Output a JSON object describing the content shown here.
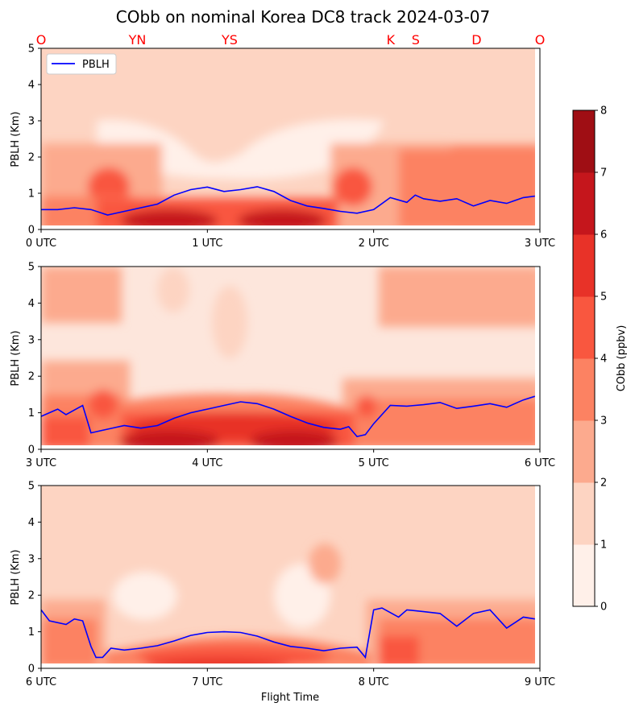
{
  "title": "CObb on nominal Korea DC8 track 2024-03-07",
  "colors": {
    "pblh_line": "#0000ff",
    "site_label": "#ff0000",
    "levels": [
      "#fff0e9",
      "#fdd4c2",
      "#fcaa8e",
      "#fc8262",
      "#f9573f",
      "#e83228",
      "#c5161c",
      "#9f0e14"
    ]
  },
  "site_labels": [
    "O",
    "YN",
    "YS",
    "K",
    "S",
    "D",
    "O"
  ],
  "colorbar": {
    "label": "CObb (ppbv)",
    "ticks": [
      "0",
      "1",
      "2",
      "3",
      "4",
      "5",
      "6",
      "7",
      "8"
    ]
  },
  "chart_data": [
    {
      "type": "area",
      "panel": 1,
      "ylabel": "PBLH (Km)",
      "xlabel": "",
      "xlim": [
        0,
        3
      ],
      "ylim": [
        0,
        5
      ],
      "x_ticks": [
        "0 UTC",
        "1 UTC",
        "2 UTC",
        "3 UTC"
      ],
      "y_ticks": [
        "0",
        "1",
        "2",
        "3",
        "4",
        "5"
      ],
      "legend": {
        "placement": "top-left",
        "entries": [
          "PBLH"
        ]
      },
      "series": [
        {
          "name": "PBLH",
          "x": [
            0.0,
            0.1,
            0.2,
            0.3,
            0.4,
            0.5,
            0.6,
            0.7,
            0.8,
            0.9,
            1.0,
            1.1,
            1.2,
            1.3,
            1.4,
            1.5,
            1.6,
            1.7,
            1.8,
            1.9,
            2.0,
            2.1,
            2.2,
            2.25,
            2.3,
            2.4,
            2.5,
            2.6,
            2.7,
            2.8,
            2.9,
            2.97
          ],
          "y": [
            0.55,
            0.55,
            0.6,
            0.55,
            0.4,
            0.5,
            0.6,
            0.7,
            0.95,
            1.1,
            1.17,
            1.05,
            1.1,
            1.18,
            1.05,
            0.8,
            0.65,
            0.58,
            0.5,
            0.45,
            0.55,
            0.88,
            0.75,
            0.95,
            0.85,
            0.78,
            0.85,
            0.65,
            0.8,
            0.72,
            0.88,
            0.92
          ]
        }
      ]
    },
    {
      "type": "area",
      "panel": 2,
      "ylabel": "PBLH (Km)",
      "xlabel": "",
      "xlim": [
        3,
        6
      ],
      "ylim": [
        0,
        5
      ],
      "x_ticks": [
        "3 UTC",
        "4 UTC",
        "5 UTC",
        "6 UTC"
      ],
      "y_ticks": [
        "0",
        "1",
        "2",
        "3",
        "4",
        "5"
      ],
      "series": [
        {
          "name": "PBLH",
          "x": [
            3.0,
            3.1,
            3.15,
            3.25,
            3.3,
            3.4,
            3.5,
            3.6,
            3.7,
            3.8,
            3.9,
            4.0,
            4.1,
            4.2,
            4.3,
            4.4,
            4.5,
            4.6,
            4.7,
            4.8,
            4.85,
            4.9,
            4.95,
            5.0,
            5.1,
            5.2,
            5.3,
            5.4,
            5.5,
            5.6,
            5.7,
            5.8,
            5.9,
            5.97
          ],
          "y": [
            0.9,
            1.1,
            0.95,
            1.2,
            0.45,
            0.55,
            0.65,
            0.58,
            0.65,
            0.85,
            1.0,
            1.1,
            1.2,
            1.3,
            1.25,
            1.1,
            0.9,
            0.72,
            0.6,
            0.55,
            0.62,
            0.35,
            0.4,
            0.7,
            1.2,
            1.18,
            1.22,
            1.28,
            1.12,
            1.18,
            1.25,
            1.15,
            1.35,
            1.45
          ]
        }
      ]
    },
    {
      "type": "area",
      "panel": 3,
      "ylabel": "PBLH (Km)",
      "xlabel": "Flight Time",
      "xlim": [
        6,
        9
      ],
      "ylim": [
        0,
        5
      ],
      "x_ticks": [
        "6 UTC",
        "7 UTC",
        "8 UTC",
        "9 UTC"
      ],
      "y_ticks": [
        "0",
        "1",
        "2",
        "3",
        "4",
        "5"
      ],
      "series": [
        {
          "name": "PBLH",
          "x": [
            6.0,
            6.05,
            6.15,
            6.2,
            6.25,
            6.3,
            6.33,
            6.37,
            6.42,
            6.5,
            6.6,
            6.7,
            6.8,
            6.9,
            7.0,
            7.1,
            7.2,
            7.3,
            7.4,
            7.5,
            7.6,
            7.7,
            7.8,
            7.9,
            7.95,
            8.0,
            8.05,
            8.15,
            8.2,
            8.3,
            8.4,
            8.5,
            8.6,
            8.7,
            8.8,
            8.9,
            8.97
          ],
          "y": [
            1.6,
            1.3,
            1.2,
            1.35,
            1.3,
            0.6,
            0.3,
            0.3,
            0.55,
            0.5,
            0.55,
            0.62,
            0.75,
            0.9,
            0.98,
            1.0,
            0.98,
            0.88,
            0.72,
            0.6,
            0.55,
            0.48,
            0.55,
            0.58,
            0.3,
            1.6,
            1.65,
            1.4,
            1.6,
            1.55,
            1.5,
            1.15,
            1.5,
            1.6,
            1.1,
            1.4,
            1.35
          ]
        }
      ]
    }
  ]
}
